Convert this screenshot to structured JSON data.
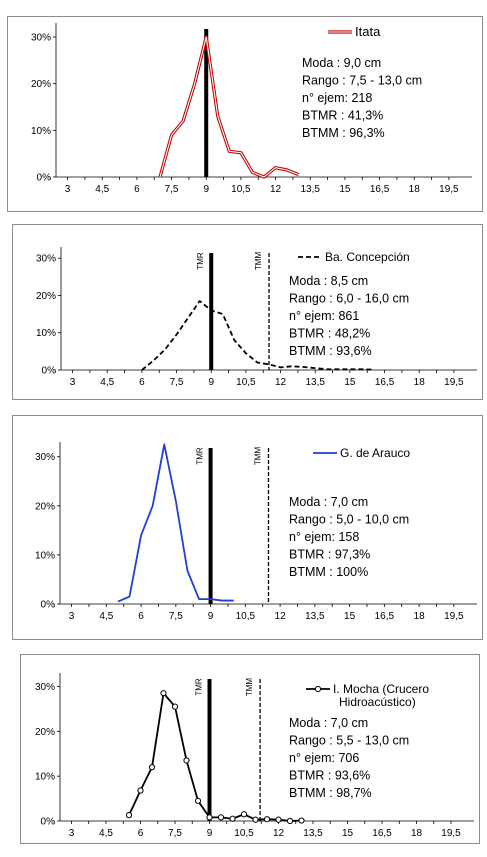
{
  "chart_data": [
    {
      "type": "line",
      "ylim": [
        0,
        0.33
      ],
      "xlim": [
        2.5,
        20.5
      ],
      "x_ticks": [
        "3",
        "4,5",
        "6",
        "7,5",
        "9",
        "10,5",
        "12",
        "13,5",
        "15",
        "16,5",
        "18",
        "19,5"
      ],
      "y_ticks": [
        "0%",
        "10%",
        "20%",
        "30%"
      ],
      "series": [
        {
          "name": "Itata",
          "style": "red-double",
          "color": "#c00000",
          "markers": false,
          "x": [
            7.0,
            7.5,
            8.0,
            8.5,
            9.0,
            9.5,
            10.0,
            10.5,
            11.0,
            11.5,
            12.0,
            12.5,
            13.0
          ],
          "y": [
            0.0,
            0.09,
            0.12,
            0.2,
            0.3,
            0.13,
            0.055,
            0.052,
            0.01,
            0.0,
            0.02,
            0.015,
            0.005
          ]
        }
      ],
      "markers": [
        {
          "x": 9.0,
          "label": "",
          "style": "solid"
        }
      ],
      "stats": [
        "Moda    : 9,0 cm",
        "Rango   : 7,5 - 13,0 cm",
        "n° ejem: 218",
        "BTMR    : 41,3%",
        "BTMM  : 96,3%"
      ]
    },
    {
      "type": "line",
      "ylim": [
        0,
        0.33
      ],
      "xlim": [
        2.5,
        20.5
      ],
      "x_ticks": [
        "3",
        "4,5",
        "6",
        "7,5",
        "9",
        "10,5",
        "12",
        "13,5",
        "15",
        "16,5",
        "18",
        "19,5"
      ],
      "y_ticks": [
        "0%",
        "10%",
        "20%",
        "30%"
      ],
      "series": [
        {
          "name": "Ba. Concepción",
          "style": "dashed",
          "color": "#000000",
          "markers": false,
          "x": [
            6.0,
            6.5,
            7.0,
            7.5,
            8.0,
            8.5,
            9.0,
            9.5,
            10.0,
            10.5,
            11.0,
            11.5,
            12.0,
            12.5,
            13.0,
            13.5,
            14.0,
            14.5,
            15.0,
            15.5,
            16.0
          ],
          "y": [
            0.0,
            0.025,
            0.055,
            0.095,
            0.14,
            0.185,
            0.16,
            0.15,
            0.08,
            0.045,
            0.02,
            0.015,
            0.007,
            0.01,
            0.008,
            0.005,
            0.002,
            0.002,
            0.002,
            0.002,
            0.001
          ]
        }
      ],
      "markers": [
        {
          "x": 9.0,
          "label": "TMR",
          "style": "solid"
        },
        {
          "x": 11.5,
          "label": "TMM",
          "style": "dashed"
        }
      ],
      "stats": [
        "Moda     : 8,5 cm",
        "Rango   : 6,0 - 16,0 cm",
        "n° ejem: 861",
        "BTMR   : 48,2%",
        "BTMM  : 93,6%"
      ]
    },
    {
      "type": "line",
      "ylim": [
        0,
        0.33
      ],
      "xlim": [
        2.5,
        20.5
      ],
      "x_ticks": [
        "3",
        "4,5",
        "6",
        "7,5",
        "9",
        "10,5",
        "12",
        "13,5",
        "15",
        "16,5",
        "18",
        "19,5"
      ],
      "y_ticks": [
        "0%",
        "10%",
        "20%",
        "30%"
      ],
      "series": [
        {
          "name": "G. de Arauco",
          "style": "solid",
          "color": "#1f3fd6",
          "markers": false,
          "x": [
            5.0,
            5.5,
            6.0,
            6.5,
            7.0,
            7.5,
            8.0,
            8.5,
            9.0,
            9.5,
            10.0
          ],
          "y": [
            0.005,
            0.015,
            0.14,
            0.2,
            0.325,
            0.21,
            0.068,
            0.01,
            0.01,
            0.007,
            0.007
          ]
        }
      ],
      "markers": [
        {
          "x": 9.0,
          "label": "TMR",
          "style": "solid"
        },
        {
          "x": 11.5,
          "label": "TMM",
          "style": "dashed"
        }
      ],
      "stats": [
        "Moda    : 7,0 cm",
        "Rango   : 5,0 - 10,0 cm",
        "n° ejem: 158",
        "BTMR   : 97,3%",
        "BTMM  : 100%"
      ]
    },
    {
      "type": "line",
      "ylim": [
        0,
        0.33
      ],
      "xlim": [
        2.5,
        20.5
      ],
      "x_ticks": [
        "3",
        "4,5",
        "6",
        "7,5",
        "9",
        "10,5",
        "12",
        "13,5",
        "15",
        "16,5",
        "18",
        "19,5"
      ],
      "y_ticks": [
        "0%",
        "10%",
        "20%",
        "30%"
      ],
      "series": [
        {
          "name": "I. Mocha (Crucero Hidroacústico)",
          "legend_lines": [
            "I. Mocha (Crucero",
            "Hidroacústico)"
          ],
          "style": "solid",
          "color": "#000000",
          "markers": true,
          "x": [
            5.5,
            6.0,
            6.5,
            7.0,
            7.5,
            8.0,
            8.5,
            9.0,
            9.5,
            10.0,
            10.5,
            11.0,
            11.5,
            12.0,
            12.5,
            13.0
          ],
          "y": [
            0.013,
            0.068,
            0.12,
            0.285,
            0.255,
            0.135,
            0.045,
            0.008,
            0.008,
            0.005,
            0.015,
            0.003,
            0.004,
            0.003,
            0.0,
            0.001
          ]
        }
      ],
      "markers": [
        {
          "x": 9.0,
          "label": "TMR",
          "style": "solid"
        },
        {
          "x": 11.2,
          "label": "TMM",
          "style": "dashed"
        }
      ],
      "stats": [
        "Moda     : 7,0 cm",
        "Rango   : 5,5 - 13,0 cm",
        "n° ejem: 706",
        "BTMR    : 93,6%",
        "BTMM  : 98,7%"
      ]
    }
  ]
}
